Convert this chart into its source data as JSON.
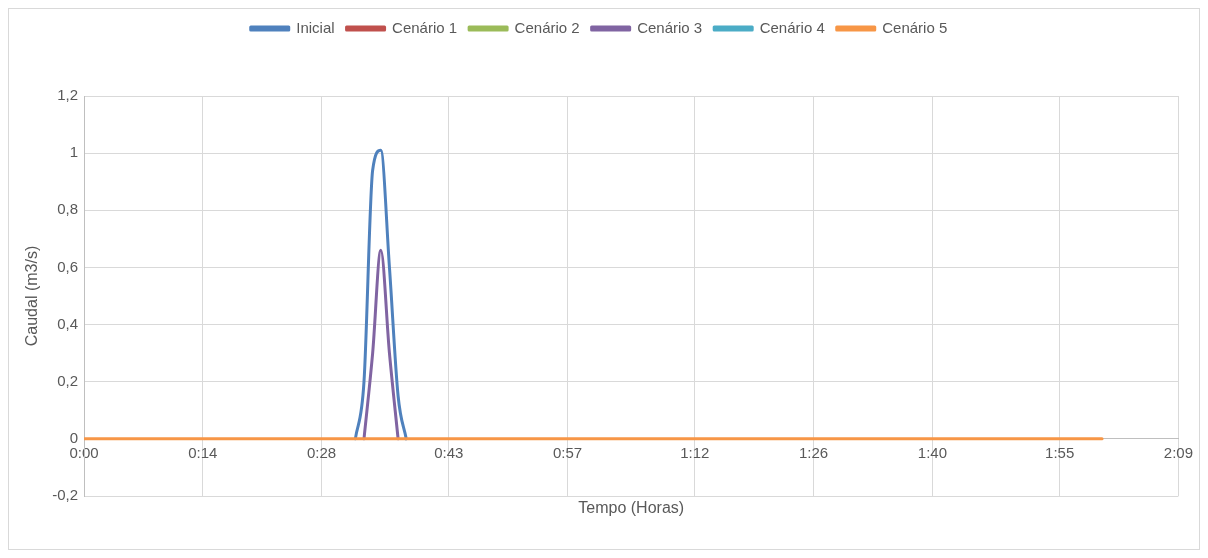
{
  "chart_data": {
    "type": "line",
    "xlabel": "Tempo (Horas)",
    "ylabel": "Caudal (m3/s)",
    "xlim": [
      0,
      2.15
    ],
    "ylim": [
      -0.2,
      1.2
    ],
    "xticks": [
      {
        "value": 0,
        "label": "0:00"
      },
      {
        "value": 0.2333,
        "label": "0:14"
      },
      {
        "value": 0.4667,
        "label": "0:28"
      },
      {
        "value": 0.7167,
        "label": "0:43"
      },
      {
        "value": 0.95,
        "label": "0:57"
      },
      {
        "value": 1.2,
        "label": "1:12"
      },
      {
        "value": 1.4333,
        "label": "1:26"
      },
      {
        "value": 1.6667,
        "label": "1:40"
      },
      {
        "value": 1.9167,
        "label": "1:55"
      },
      {
        "value": 2.15,
        "label": "2:09"
      }
    ],
    "yticks": [
      {
        "value": -0.2,
        "label": "-0,2"
      },
      0,
      {
        "value": 0.2,
        "label": "0,2"
      },
      {
        "value": 0.4,
        "label": "0,4"
      },
      {
        "value": 0.6,
        "label": "0,6"
      },
      {
        "value": 0.8,
        "label": "0,8"
      },
      1,
      {
        "value": 1.2,
        "label": "1,2"
      }
    ],
    "grid": true,
    "legend": "top",
    "marker": "none",
    "line_style": "solid",
    "series": [
      {
        "name": "Inicial",
        "color": "#4f81bd",
        "x": [
          0.533,
          0.55,
          0.567,
          0.583,
          0.6,
          0.617,
          0.633
        ],
        "values": [
          0,
          0.2,
          0.94,
          1.01,
          0.6,
          0.15,
          0
        ]
      },
      {
        "name": "Cenário 1",
        "color": "#c0504d"
      },
      {
        "name": "Cenário 2",
        "color": "#9bbb59"
      },
      {
        "name": "Cenário 3",
        "color": "#8064a2",
        "x": [
          0.55,
          0.567,
          0.583,
          0.6,
          0.617
        ],
        "values": [
          0,
          0.3,
          0.66,
          0.3,
          0
        ]
      },
      {
        "name": "Cenário 4",
        "color": "#4bacc6"
      },
      {
        "name": "Cenário 5",
        "color": "#f79646",
        "x": [
          0,
          2.0
        ],
        "values": [
          0,
          0
        ]
      }
    ]
  }
}
